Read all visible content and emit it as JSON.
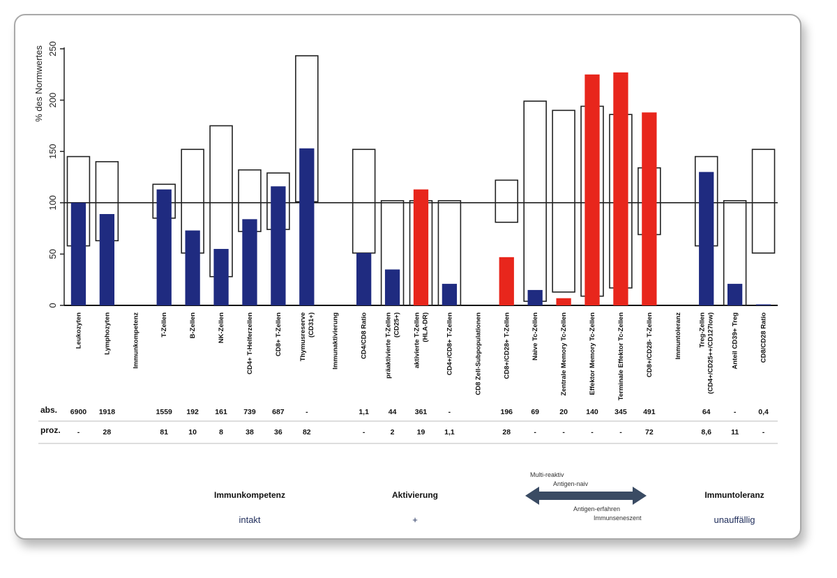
{
  "colors": {
    "blue": "#1f2b80",
    "red": "#e8261c",
    "outline": "#222222",
    "arrow": "#3a4b63",
    "status_text": "#1e2c5a"
  },
  "chart_data": {
    "type": "bar",
    "ylabel": "% des Normwertes",
    "ylim": [
      0,
      250
    ],
    "yticks": [
      0,
      50,
      100,
      150,
      200,
      250
    ],
    "reference_line": 100,
    "categories": [
      {
        "label": "Leukozyten",
        "value": 100,
        "color": "blue",
        "range": [
          58,
          145
        ],
        "abs": "6900",
        "proz": "-"
      },
      {
        "label": "Lymphozyten",
        "value": 89,
        "color": "blue",
        "range": [
          63,
          140
        ],
        "abs": "1918",
        "proz": "28"
      },
      {
        "label": "Immunkompetenz",
        "value": null,
        "color": null,
        "range": null,
        "abs": "",
        "proz": "",
        "header": true
      },
      {
        "label": "T-Zellen",
        "value": 113,
        "color": "blue",
        "range": [
          85,
          118
        ],
        "abs": "1559",
        "proz": "81"
      },
      {
        "label": "B-Zellen",
        "value": 73,
        "color": "blue",
        "range": [
          51,
          152
        ],
        "abs": "192",
        "proz": "10"
      },
      {
        "label": "NK-Zellen",
        "value": 55,
        "color": "blue",
        "range": [
          28,
          175
        ],
        "abs": "161",
        "proz": "8"
      },
      {
        "label": "CD4+ T-Helferzellen",
        "value": 84,
        "color": "blue",
        "range": [
          72,
          132
        ],
        "abs": "739",
        "proz": "38"
      },
      {
        "label": "CD8+ T-Zellen",
        "value": 116,
        "color": "blue",
        "range": [
          74,
          129
        ],
        "abs": "687",
        "proz": "36"
      },
      {
        "label": "Thymusreserve\n(CD31+)",
        "value": 153,
        "color": "blue",
        "range": [
          101,
          250
        ],
        "abs": "-",
        "proz": "82"
      },
      {
        "label": "Immunaktivierung",
        "value": null,
        "color": null,
        "range": null,
        "abs": "",
        "proz": "",
        "header": true
      },
      {
        "label": "CD4/CD8 Ratio",
        "value": 51,
        "color": "blue",
        "range": [
          51,
          152
        ],
        "abs": "1,1",
        "proz": "-"
      },
      {
        "label": "präaktivierte T-Zellen\n(CD25+)",
        "value": 35,
        "color": "blue",
        "range": [
          0,
          102
        ],
        "abs": "44",
        "proz": "2"
      },
      {
        "label": "aktivierte T-Zellen\n(HLA-DR)",
        "value": 113,
        "color": "red",
        "range": [
          0,
          102
        ],
        "abs": "361",
        "proz": "19"
      },
      {
        "label": "CD4+/CD8+ T-Zellen",
        "value": 21,
        "color": "blue",
        "range": [
          0,
          102
        ],
        "abs": "-",
        "proz": "1,1"
      },
      {
        "label": "CD8 Zell-Subpopulationen",
        "value": null,
        "color": null,
        "range": null,
        "abs": "",
        "proz": "",
        "header": true
      },
      {
        "label": "CD8+/CD28+ T-Zellen",
        "value": 47,
        "color": "red",
        "range": [
          81,
          122
        ],
        "abs": "196",
        "proz": "28"
      },
      {
        "label": "Naive Tc-Zellen",
        "value": 15,
        "color": "blue",
        "range": [
          4,
          199
        ],
        "abs": "69",
        "proz": "-"
      },
      {
        "label": "Zentrale Memory Tc-Zellen",
        "value": 7,
        "color": "red",
        "range": [
          13,
          190
        ],
        "abs": "20",
        "proz": "-"
      },
      {
        "label": "Effektor Memory Tc-Zellen",
        "value": 225,
        "color": "red",
        "range": [
          9,
          194
        ],
        "abs": "140",
        "proz": "-"
      },
      {
        "label": "Terminale Effektor Tc-Zellen",
        "value": 227,
        "color": "red",
        "range": [
          17,
          186
        ],
        "abs": "345",
        "proz": "-"
      },
      {
        "label": "CD8+/CD28- T-Zellen",
        "value": 188,
        "color": "red",
        "range": [
          69,
          134
        ],
        "abs": "491",
        "proz": "72"
      },
      {
        "label": "Immuntoleranz",
        "value": null,
        "color": null,
        "range": null,
        "abs": "",
        "proz": "",
        "header": true
      },
      {
        "label": "Treg-Zellen\n(CD4+/CD25++/CD127low)",
        "value": 130,
        "color": "blue",
        "range": [
          58,
          145
        ],
        "abs": "64",
        "proz": "8,6"
      },
      {
        "label": "Anteil CD39+ Treg",
        "value": 21,
        "color": "blue",
        "range": [
          0,
          102
        ],
        "abs": "-",
        "proz": "11"
      },
      {
        "label": "CD8/CD28 Ratio",
        "value": 1,
        "color": "blue",
        "range": [
          51,
          152
        ],
        "abs": "0,4",
        "proz": "-"
      }
    ]
  },
  "table": {
    "row_abs_label": "abs.",
    "row_proz_label": "proz."
  },
  "summary": {
    "immunkompetenz": {
      "title": "Immunkompetenz",
      "status": "intakt"
    },
    "aktivierung": {
      "title": "Aktivierung",
      "status": "+"
    },
    "arrow": {
      "top1": "Multi-reaktiv",
      "top2": "Antigen-naiv",
      "bottom1": "Antigen-erfahren",
      "bottom2": "Immunseneszent"
    },
    "immuntoleranz": {
      "title": "Immuntoleranz",
      "status": "unauffällig"
    }
  }
}
